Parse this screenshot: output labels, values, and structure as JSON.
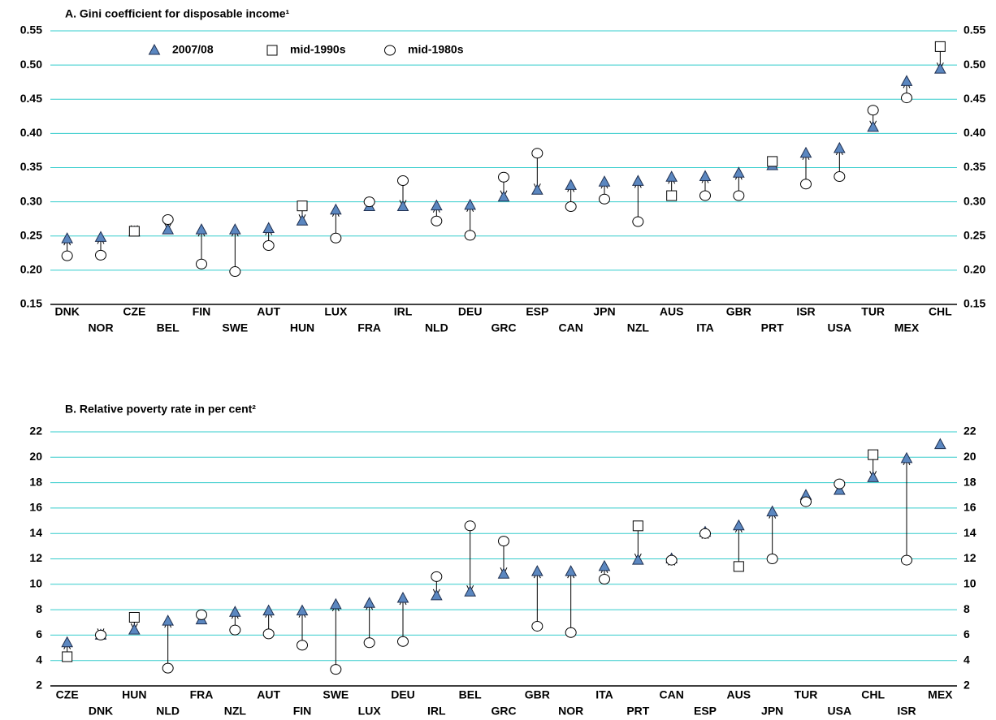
{
  "chart_data": [
    {
      "type": "dot-arrow",
      "title": "A. Gini coefficient for disposable income¹",
      "categories": [
        "DNK",
        "NOR",
        "CZE",
        "BEL",
        "FIN",
        "SWE",
        "AUT",
        "HUN",
        "LUX",
        "FRA",
        "IRL",
        "NLD",
        "DEU",
        "GRC",
        "ESP",
        "CAN",
        "JPN",
        "NZL",
        "AUS",
        "ITA",
        "GBR",
        "PRT",
        "ISR",
        "USA",
        "TUR",
        "MEX",
        "CHL"
      ],
      "series": [
        {
          "name": "2007/08",
          "marker": "triangle",
          "color": "#5b87c0",
          "values": [
            0.246,
            0.248,
            0.256,
            0.259,
            0.259,
            0.259,
            0.261,
            0.272,
            0.288,
            0.293,
            0.293,
            0.294,
            0.295,
            0.307,
            0.317,
            0.324,
            0.329,
            0.33,
            0.336,
            0.337,
            0.342,
            0.353,
            0.371,
            0.378,
            0.409,
            0.476,
            0.494
          ]
        },
        {
          "name": "mid-1990s",
          "marker": "square",
          "color": "#ffffff",
          "values": [
            null,
            null,
            0.257,
            null,
            null,
            null,
            null,
            0.294,
            null,
            null,
            null,
            null,
            null,
            null,
            null,
            null,
            null,
            null,
            0.309,
            null,
            null,
            0.359,
            null,
            null,
            null,
            null,
            0.527
          ]
        },
        {
          "name": "mid-1980s",
          "marker": "circle",
          "color": "#ffffff",
          "values": [
            0.221,
            0.222,
            null,
            0.274,
            0.209,
            0.198,
            0.236,
            null,
            0.247,
            0.3,
            0.331,
            0.272,
            0.251,
            0.336,
            0.371,
            0.293,
            0.304,
            0.271,
            null,
            0.309,
            0.309,
            null,
            0.326,
            0.337,
            0.434,
            0.452,
            null
          ]
        }
      ],
      "ylim": [
        0.15,
        0.55
      ],
      "yticks": [
        0.15,
        {
          "value": 0.2,
          "label": "0.20"
        },
        0.25,
        {
          "value": 0.3,
          "label": "0.30"
        },
        0.35,
        {
          "value": 0.4,
          "label": "0.40"
        },
        0.45,
        {
          "value": 0.5,
          "label": "0.50"
        },
        0.55
      ],
      "grid": true,
      "legend": "upper left"
    },
    {
      "type": "dot-arrow",
      "title": "B. Relative poverty rate in per cent²",
      "categories": [
        "CZE",
        "DNK",
        "HUN",
        "NLD",
        "FRA",
        "NZL",
        "AUT",
        "FIN",
        "SWE",
        "LUX",
        "DEU",
        "IRL",
        "BEL",
        "GRC",
        "GBR",
        "NOR",
        "ITA",
        "PRT",
        "CAN",
        "ESP",
        "AUS",
        "JPN",
        "TUR",
        "USA",
        "CHL",
        "ISR",
        "MEX"
      ],
      "series": [
        {
          "marker": "triangle",
          "color": "#5b87c0",
          "values": [
            5.4,
            6.0,
            6.4,
            7.1,
            7.2,
            7.8,
            7.9,
            7.9,
            8.4,
            8.5,
            8.9,
            9.1,
            9.4,
            10.8,
            11.0,
            11.0,
            11.4,
            11.9,
            12.0,
            14.1,
            14.6,
            15.7,
            17.0,
            17.4,
            18.4,
            19.9,
            21.0
          ]
        },
        {
          "marker": "square",
          "color": "#ffffff",
          "values": [
            4.3,
            null,
            7.4,
            null,
            null,
            null,
            null,
            null,
            null,
            null,
            null,
            null,
            null,
            null,
            null,
            null,
            null,
            14.6,
            null,
            null,
            11.4,
            null,
            null,
            null,
            20.2,
            null,
            null
          ]
        },
        {
          "marker": "circle",
          "color": "#ffffff",
          "values": [
            null,
            6.0,
            null,
            3.4,
            7.6,
            6.4,
            6.1,
            5.2,
            3.3,
            5.4,
            5.5,
            10.6,
            14.6,
            13.4,
            6.7,
            6.2,
            10.4,
            null,
            11.9,
            14.0,
            null,
            12.0,
            16.5,
            17.9,
            null,
            11.9,
            null
          ]
        }
      ],
      "ylim": [
        2,
        22
      ],
      "yticks": [
        2,
        4,
        6,
        8,
        10,
        12,
        14,
        16,
        18,
        20,
        22
      ],
      "grid": true
    }
  ]
}
